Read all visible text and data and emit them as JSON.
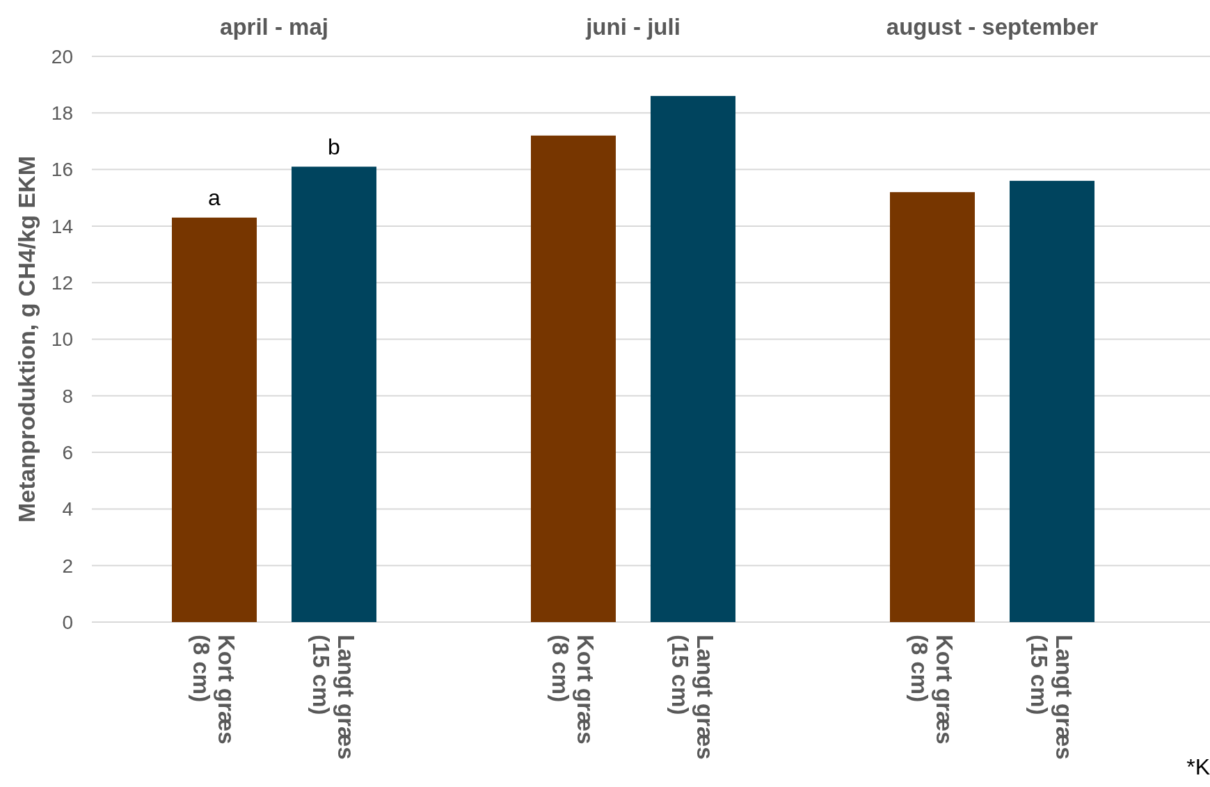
{
  "chart_data": {
    "type": "bar",
    "ylabel": "Metanproduktion, g CH4/kg EKM",
    "categories": [
      "Kort græs\n(8 cm)",
      "Langt græs\n(15 cm)",
      null,
      "Kort græs\n(8 cm)",
      "Langt græs\n(15 cm)",
      null,
      "Kort græs\n(8 cm)",
      "Langt græs\n(15 cm)"
    ],
    "values": [
      14.3,
      16.1,
      null,
      17.2,
      18.6,
      null,
      15.2,
      15.6
    ],
    "colors": [
      "#773600",
      "#00445e",
      null,
      "#773600",
      "#00445e",
      null,
      "#773600",
      "#00445e"
    ],
    "ylim": [
      0,
      20
    ],
    "yticks": [
      0,
      2,
      4,
      6,
      8,
      10,
      12,
      14,
      16,
      18,
      20
    ],
    "grid": "y",
    "annotations": [
      "april - maj",
      "juni - juli",
      "august - september",
      {
        "text": "a",
        "x": "Kort græs\n(8 cm)",
        "y": 14.3
      },
      {
        "text": "b",
        "x": "Langt græs\n(15 cm)",
        "y": 16.1
      },
      "*K"
    ]
  }
}
